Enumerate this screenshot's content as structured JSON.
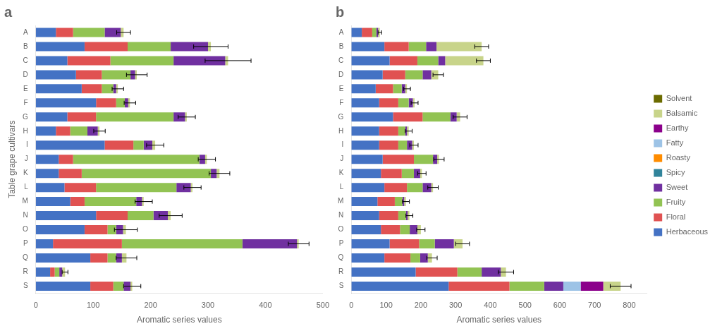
{
  "chart_data": [
    {
      "type": "bar",
      "orientation": "horizontal",
      "stacked": true,
      "title": "a",
      "xlabel": "Aromatic series values",
      "ylabel": "Table grape cultivars",
      "categories": [
        "A",
        "B",
        "C",
        "D",
        "E",
        "F",
        "G",
        "H",
        "I",
        "J",
        "K",
        "L",
        "M",
        "N",
        "O",
        "P",
        "Q",
        "R",
        "S"
      ],
      "series": [
        {
          "name": "Herbaceous",
          "color": "#4472C4",
          "values": [
            35,
            85,
            55,
            70,
            80,
            105,
            55,
            35,
            120,
            40,
            40,
            50,
            60,
            105,
            85,
            30,
            95,
            25,
            95
          ]
        },
        {
          "name": "Floral",
          "color": "#E05252",
          "values": [
            30,
            75,
            75,
            45,
            35,
            35,
            50,
            25,
            50,
            25,
            40,
            55,
            25,
            55,
            40,
            120,
            30,
            8,
            40
          ]
        },
        {
          "name": "Fruity",
          "color": "#92C353",
          "values": [
            55,
            75,
            110,
            50,
            20,
            15,
            135,
            30,
            18,
            220,
            225,
            140,
            90,
            45,
            15,
            210,
            15,
            8,
            18
          ]
        },
        {
          "name": "Sweet",
          "color": "#7030A0",
          "values": [
            28,
            65,
            90,
            8,
            5,
            6,
            20,
            18,
            15,
            10,
            10,
            25,
            10,
            25,
            12,
            95,
            10,
            5,
            12
          ]
        },
        {
          "name": "Balsamic",
          "color": "#C8D48A",
          "values": [
            5,
            5,
            5,
            3,
            3,
            3,
            3,
            3,
            5,
            3,
            5,
            3,
            3,
            5,
            5,
            3,
            8,
            5,
            3
          ]
        }
      ],
      "errors": [
        12,
        30,
        40,
        18,
        10,
        10,
        15,
        10,
        15,
        15,
        18,
        15,
        15,
        20,
        20,
        18,
        18,
        5,
        15
      ],
      "xlim": [
        0,
        500
      ],
      "xticks": [
        0,
        100,
        200,
        300,
        400,
        500
      ],
      "grid": false
    },
    {
      "type": "bar",
      "orientation": "horizontal",
      "stacked": true,
      "title": "b",
      "xlabel": "Aromatic series values",
      "categories": [
        "A",
        "B",
        "C",
        "D",
        "E",
        "F",
        "G",
        "H",
        "I",
        "J",
        "K",
        "L",
        "M",
        "N",
        "O",
        "P",
        "Q",
        "R",
        "S"
      ],
      "series": [
        {
          "name": "Herbaceous",
          "color": "#4472C4",
          "values": [
            30,
            95,
            110,
            90,
            70,
            80,
            120,
            80,
            80,
            90,
            85,
            95,
            75,
            80,
            85,
            110,
            95,
            185,
            280
          ]
        },
        {
          "name": "Floral",
          "color": "#E05252",
          "values": [
            30,
            70,
            80,
            65,
            50,
            55,
            85,
            55,
            55,
            90,
            60,
            65,
            50,
            55,
            55,
            85,
            75,
            120,
            175
          ]
        },
        {
          "name": "Fruity",
          "color": "#92C353",
          "values": [
            12,
            50,
            60,
            50,
            25,
            30,
            80,
            20,
            25,
            55,
            35,
            45,
            22,
            22,
            28,
            45,
            28,
            70,
            100
          ]
        },
        {
          "name": "Sweet",
          "color": "#7030A0",
          "values": [
            5,
            30,
            20,
            25,
            10,
            12,
            18,
            5,
            15,
            12,
            18,
            25,
            5,
            5,
            22,
            55,
            22,
            55,
            55
          ]
        },
        {
          "name": "Spicy",
          "color": "#31849B",
          "values": [
            null,
            null,
            null,
            null,
            null,
            null,
            null,
            null,
            null,
            null,
            null,
            null,
            null,
            null,
            null,
            null,
            null,
            null,
            null
          ]
        },
        {
          "name": "Roasty",
          "color": "#FF8C00",
          "values": [
            null,
            null,
            null,
            null,
            null,
            null,
            null,
            null,
            null,
            null,
            null,
            null,
            null,
            null,
            null,
            null,
            null,
            null,
            null
          ]
        },
        {
          "name": "Fatty",
          "color": "#9DC3E6",
          "values": [
            null,
            null,
            null,
            null,
            null,
            null,
            null,
            null,
            null,
            null,
            null,
            null,
            null,
            null,
            null,
            null,
            null,
            null,
            50
          ]
        },
        {
          "name": "Earthy",
          "color": "#8B008B",
          "values": [
            null,
            null,
            null,
            null,
            null,
            null,
            null,
            null,
            null,
            null,
            null,
            null,
            null,
            null,
            null,
            null,
            null,
            null,
            65
          ]
        },
        {
          "name": "Balsamic",
          "color": "#C8D48A",
          "values": [
            5,
            130,
            110,
            20,
            5,
            5,
            10,
            5,
            5,
            5,
            5,
            5,
            5,
            5,
            10,
            25,
            12,
            15,
            50
          ]
        },
        {
          "name": "Solvent",
          "color": "#6B6B00",
          "values": [
            null,
            null,
            null,
            null,
            null,
            null,
            null,
            null,
            null,
            null,
            null,
            null,
            null,
            null,
            null,
            null,
            null,
            null,
            null
          ]
        }
      ],
      "errors": [
        5,
        20,
        20,
        15,
        10,
        10,
        20,
        10,
        12,
        15,
        12,
        15,
        10,
        10,
        12,
        20,
        15,
        22,
        30
      ],
      "xlim": [
        0,
        850
      ],
      "xticks": [
        0,
        100,
        200,
        300,
        400,
        500,
        600,
        700,
        800
      ],
      "grid": false,
      "legend": "right"
    }
  ]
}
